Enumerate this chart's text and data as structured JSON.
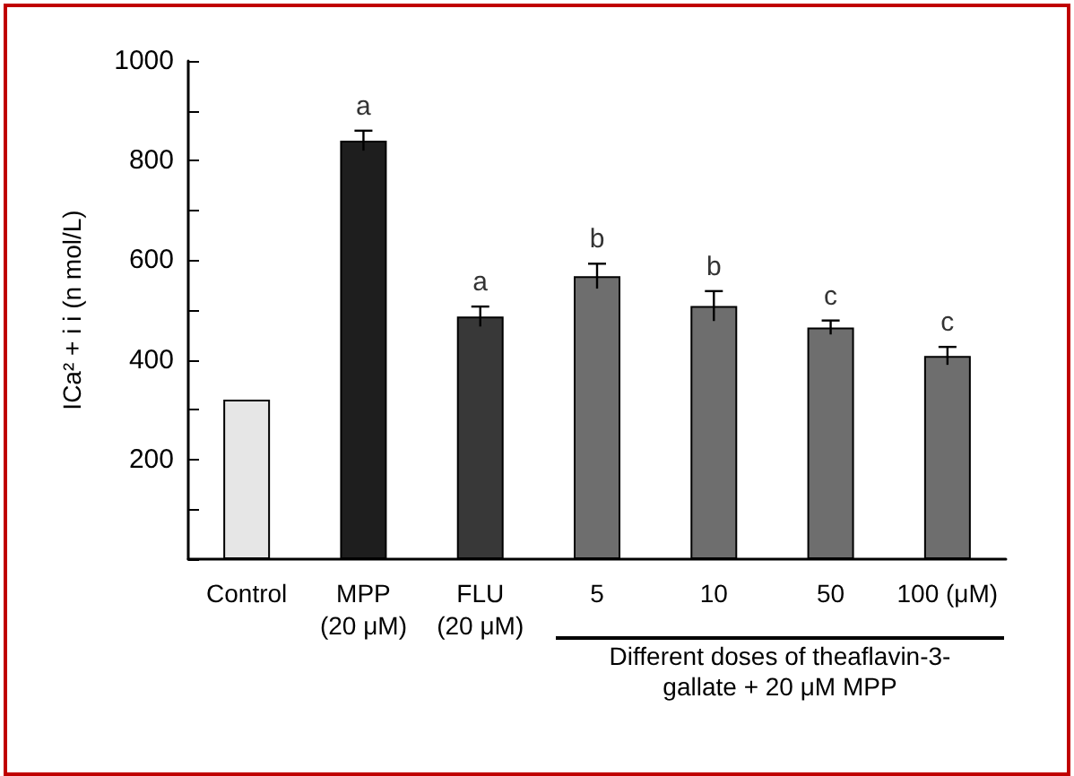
{
  "chart_data": {
    "type": "bar",
    "ylabel": "ICa² + i i (n mol/L)",
    "xlabel": "Different doses of theaflavin-3-gallate + 20 μM MPP",
    "categories": [
      "Control",
      "MPP\n(20 μM)",
      "FLU\n(20 μM)",
      "5",
      "10",
      "50",
      "100 (μM)"
    ],
    "values": [
      320,
      840,
      487,
      568,
      508,
      465,
      408
    ],
    "errors": [
      null,
      20,
      20,
      25,
      30,
      14,
      18
    ],
    "colors": [
      "#e6e6e6",
      "#1e1e1e",
      "#383838",
      "#6e6e6e",
      "#6e6e6e",
      "#6e6e6e",
      "#6e6e6e"
    ],
    "ylim": [
      0,
      1000
    ],
    "yticks": [
      {
        "value": 0,
        "label": null
      },
      {
        "value": 100,
        "label": null
      },
      200,
      {
        "value": 300,
        "label": null
      },
      400,
      {
        "value": 500,
        "label": null
      },
      600,
      {
        "value": 700,
        "label": null
      },
      800,
      {
        "value": 900,
        "label": null
      },
      1000
    ],
    "annotations": [
      {
        "text": "a",
        "x": "MPP\n(20 μM)",
        "y": 840
      },
      {
        "text": "a",
        "x": "FLU\n(20 μM)",
        "y": 487
      },
      {
        "text": "b",
        "x": "5",
        "y": 568
      },
      {
        "text": "b",
        "x": "10",
        "y": 508
      },
      {
        "text": "c",
        "x": "50",
        "y": 465
      },
      {
        "text": "c",
        "x": "100 (μM)",
        "y": 408
      }
    ],
    "grid": false
  }
}
